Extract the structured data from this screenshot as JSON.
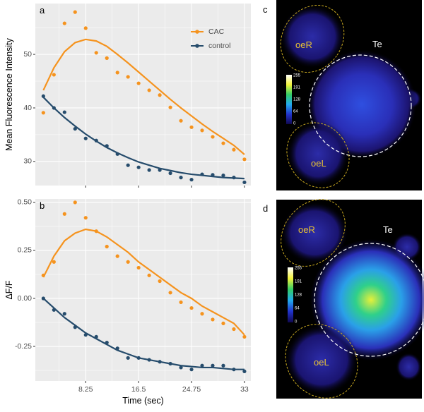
{
  "chart_data": [
    {
      "type": "line",
      "panel": "a",
      "y_label": "Mean Fluorescence Intensity",
      "x": [
        1.65,
        3.3,
        4.95,
        6.6,
        8.25,
        9.9,
        11.55,
        13.2,
        14.85,
        16.5,
        18.15,
        19.8,
        21.45,
        23.1,
        24.75,
        26.4,
        28.05,
        29.7,
        31.35,
        33
      ],
      "series": [
        {
          "name": "CAC",
          "color": "#f5931e",
          "values": [
            39.1,
            46.2,
            55.8,
            57.9,
            54.9,
            50.3,
            49.3,
            46.6,
            45.8,
            44.6,
            43.3,
            42.4,
            40.1,
            37.6,
            36.4,
            35.8,
            34.6,
            33.4,
            32.2,
            30.4
          ],
          "fit": [
            43.3,
            47.5,
            50.5,
            52.2,
            52.8,
            52.5,
            51.5,
            50.0,
            48.4,
            46.7,
            45.0,
            43.3,
            41.6,
            40.0,
            38.5,
            37.0,
            35.6,
            34.3,
            33.0,
            31.3
          ]
        },
        {
          "name": "control",
          "color": "#264c6c",
          "values": [
            42.2,
            40.0,
            39.2,
            36.1,
            34.3,
            33.9,
            32.9,
            31.4,
            29.3,
            28.9,
            28.4,
            28.4,
            27.8,
            27.0,
            26.6,
            27.6,
            27.5,
            27.4,
            27.0,
            26.1
          ],
          "fit": [
            42.0,
            40.0,
            38.2,
            36.6,
            35.1,
            33.8,
            32.6,
            31.6,
            30.7,
            29.9,
            29.3,
            28.7,
            28.3,
            27.9,
            27.6,
            27.4,
            27.2,
            27.0,
            26.9,
            26.8
          ]
        }
      ],
      "xlim": [
        0.4,
        34.0
      ],
      "xticks": [
        8.25,
        16.5,
        24.75,
        33
      ],
      "show_xtick_labels": false,
      "ylim": [
        25.5,
        59.5
      ],
      "yticks": [
        30,
        40,
        50
      ],
      "grid": true,
      "legend": "top-right"
    },
    {
      "type": "line",
      "panel": "b",
      "y_label": "ΔF/F",
      "x_label": "Time (sec)",
      "x": [
        1.65,
        3.3,
        4.95,
        6.6,
        8.25,
        9.9,
        11.55,
        13.2,
        14.85,
        16.5,
        18.15,
        19.8,
        21.45,
        23.1,
        24.75,
        26.4,
        28.05,
        29.7,
        31.35,
        33
      ],
      "series": [
        {
          "color": "#f5931e",
          "values": [
            0.12,
            0.19,
            0.44,
            0.5,
            0.42,
            0.35,
            0.27,
            0.22,
            0.19,
            0.16,
            0.12,
            0.09,
            0.03,
            -0.02,
            -0.05,
            -0.08,
            -0.11,
            -0.13,
            -0.16,
            -0.2
          ],
          "fit": [
            0.11,
            0.22,
            0.3,
            0.34,
            0.36,
            0.35,
            0.32,
            0.28,
            0.24,
            0.19,
            0.15,
            0.11,
            0.07,
            0.03,
            0.0,
            -0.04,
            -0.07,
            -0.1,
            -0.13,
            -0.19
          ]
        },
        {
          "color": "#264c6c",
          "values": [
            0.0,
            -0.06,
            -0.08,
            -0.15,
            -0.19,
            -0.2,
            -0.23,
            -0.26,
            -0.31,
            -0.31,
            -0.32,
            -0.33,
            -0.34,
            -0.36,
            -0.37,
            -0.35,
            -0.35,
            -0.35,
            -0.37,
            -0.38
          ],
          "fit": [
            0.0,
            -0.05,
            -0.1,
            -0.14,
            -0.18,
            -0.21,
            -0.24,
            -0.27,
            -0.29,
            -0.31,
            -0.32,
            -0.33,
            -0.34,
            -0.35,
            -0.355,
            -0.36,
            -0.36,
            -0.365,
            -0.37,
            -0.37
          ]
        }
      ],
      "xlim": [
        0.4,
        34.0
      ],
      "xticks": [
        8.25,
        {
          "value": 16.5,
          "label": "16.5"
        },
        24.75,
        33
      ],
      "show_xtick_labels": true,
      "ylim": [
        -0.43,
        0.518
      ],
      "yticks": [
        {
          "value": 0.5,
          "label": "0.50"
        },
        0.25,
        {
          "value": 0,
          "label": "0.00"
        },
        -0.25
      ],
      "grid": true
    }
  ],
  "panels": [
    {
      "label": "c",
      "regions": [
        "oeR",
        "Te",
        "oeL"
      ],
      "colorbar": [
        255,
        191,
        128,
        64,
        0
      ]
    },
    {
      "label": "d",
      "regions": [
        "oeR",
        "Te",
        "oeL"
      ],
      "colorbar": [
        255,
        191,
        128,
        64,
        0
      ]
    }
  ]
}
